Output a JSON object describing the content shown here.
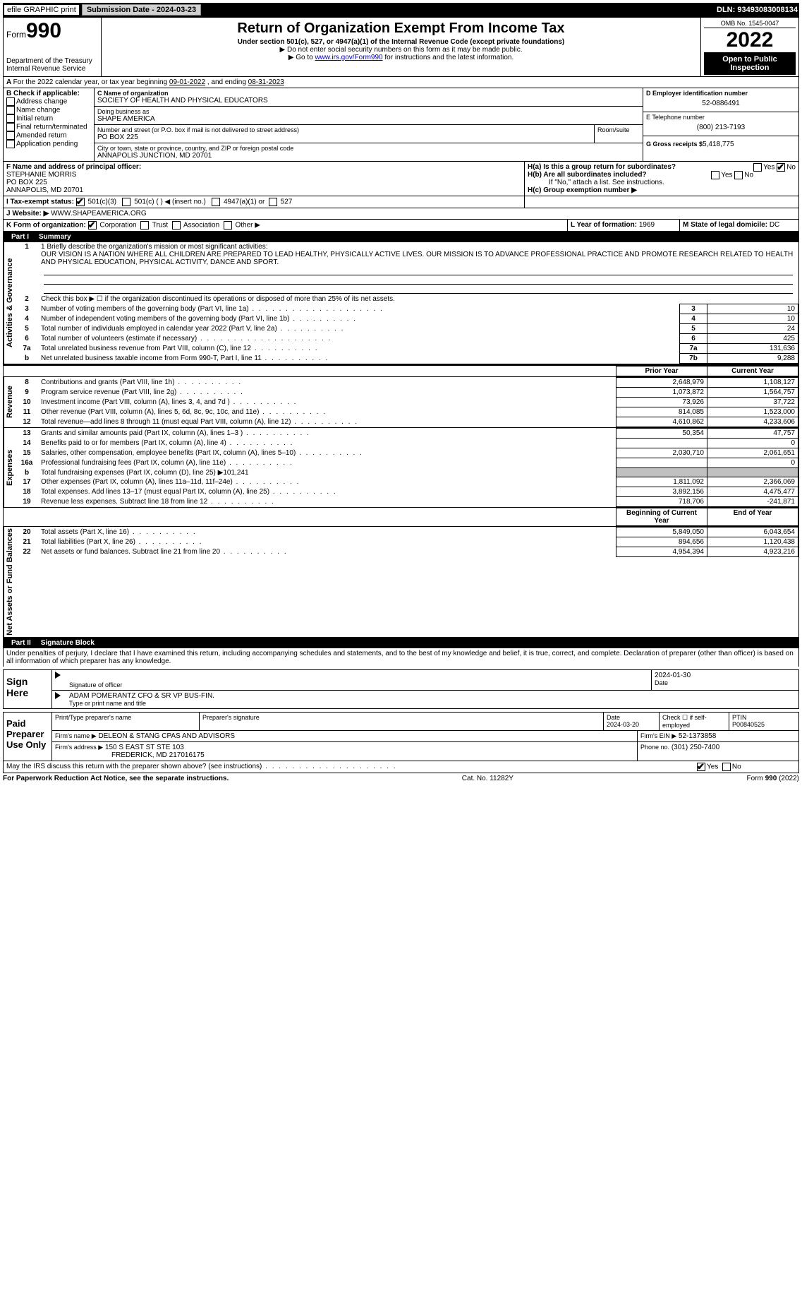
{
  "top": {
    "efile": "efile GRAPHIC print",
    "submission_label": "Submission Date - 2024-03-23",
    "dln": "DLN: 93493083008134"
  },
  "header": {
    "form_prefix": "Form",
    "form_number": "990",
    "title": "Return of Organization Exempt From Income Tax",
    "subtitle": "Under section 501(c), 527, or 4947(a)(1) of the Internal Revenue Code (except private foundations)",
    "note1": "▶ Do not enter social security numbers on this form as it may be made public.",
    "note2_pre": "▶ Go to ",
    "note2_link": "www.irs.gov/Form990",
    "note2_post": " for instructions and the latest information.",
    "dept": "Department of the Treasury\nInternal Revenue Service",
    "omb": "OMB No. 1545-0047",
    "year": "2022",
    "open_public": "Open to Public Inspection"
  },
  "period": {
    "label_a_pre": "For the 2022 calendar year, or tax year beginning ",
    "begin": "09-01-2022",
    "mid": " , and ending ",
    "end": "08-31-2023"
  },
  "box_b": {
    "header": "B Check if applicable:",
    "items": [
      "Address change",
      "Name change",
      "Initial return",
      "Final return/terminated",
      "Amended return",
      "Application pending"
    ]
  },
  "box_c": {
    "name_label": "C Name of organization",
    "name": "SOCIETY OF HEALTH AND PHYSICAL EDUCATORS",
    "dba_label": "Doing business as",
    "dba": "SHAPE AMERICA",
    "street_label": "Number and street (or P.O. box if mail is not delivered to street address)",
    "room_label": "Room/suite",
    "street": "PO BOX 225",
    "city_label": "City or town, state or province, country, and ZIP or foreign postal code",
    "city": "ANNAPOLIS JUNCTION, MD  20701"
  },
  "box_d": {
    "label": "D Employer identification number",
    "value": "52-0886491"
  },
  "box_e": {
    "label": "E Telephone number",
    "value": "(800) 213-7193"
  },
  "box_g": {
    "label": "G Gross receipts $",
    "value": "5,418,775"
  },
  "box_f": {
    "label": "F Name and address of principal officer:",
    "name": "STEPHANIE MORRIS",
    "street": "PO BOX 225",
    "city": "ANNAPOLIS, MD  20701"
  },
  "box_h": {
    "ha_label": "H(a)  Is this a group return for subordinates?",
    "yes": "Yes",
    "no": "No",
    "hb_label": "H(b)  Are all subordinates included?",
    "hb_note": "If \"No,\" attach a list. See instructions.",
    "hc_label": "H(c)  Group exemption number ▶"
  },
  "tax_status": {
    "label": "I    Tax-exempt status:",
    "opt1": "501(c)(3)",
    "opt2": "501(c) (  ) ◀ (insert no.)",
    "opt3": "4947(a)(1) or",
    "opt4": "527"
  },
  "website": {
    "label": "J    Website: ▶",
    "value": "WWW.SHAPEAMERICA.ORG"
  },
  "box_k": {
    "label": "K Form of organization:",
    "opts": [
      "Corporation",
      "Trust",
      "Association",
      "Other ▶"
    ]
  },
  "box_l": {
    "label": "L Year of formation:",
    "value": "1969"
  },
  "box_m": {
    "label": "M State of legal domicile:",
    "value": "DC"
  },
  "part1": {
    "label": "Part I",
    "title": "Summary"
  },
  "line1": {
    "label": "1  Briefly describe the organization's mission or most significant activities:",
    "text": "OUR VISION IS A NATION WHERE ALL CHILDREN ARE PREPARED TO LEAD HEALTHY, PHYSICALLY ACTIVE LIVES. OUR MISSION IS TO ADVANCE PROFESSIONAL PRACTICE AND PROMOTE RESEARCH RELATED TO HEALTH AND PHYSICAL EDUCATION, PHYSICAL ACTIVITY, DANCE AND SPORT."
  },
  "side_labels": {
    "gov": "Activities & Governance",
    "rev": "Revenue",
    "exp": "Expenses",
    "net": "Net Assets or Fund Balances"
  },
  "gov_lines": [
    {
      "n": "2",
      "t": "Check this box ▶ ☐ if the organization discontinued its operations or disposed of more than 25% of its net assets."
    },
    {
      "n": "3",
      "t": "Number of voting members of the governing body (Part VI, line 1a)",
      "box": "3",
      "v": "10"
    },
    {
      "n": "4",
      "t": "Number of independent voting members of the governing body (Part VI, line 1b)",
      "box": "4",
      "v": "10"
    },
    {
      "n": "5",
      "t": "Total number of individuals employed in calendar year 2022 (Part V, line 2a)",
      "box": "5",
      "v": "24"
    },
    {
      "n": "6",
      "t": "Total number of volunteers (estimate if necessary)",
      "box": "6",
      "v": "425"
    },
    {
      "n": "7a",
      "t": "Total unrelated business revenue from Part VIII, column (C), line 12",
      "box": "7a",
      "v": "131,636"
    },
    {
      "n": "b",
      "t": "Net unrelated business taxable income from Form 990-T, Part I, line 11",
      "box": "7b",
      "v": "9,288"
    }
  ],
  "col_headers": {
    "prior": "Prior Year",
    "current": "Current Year"
  },
  "rev_lines": [
    {
      "n": "8",
      "t": "Contributions and grants (Part VIII, line 1h)",
      "p": "2,648,979",
      "c": "1,108,127"
    },
    {
      "n": "9",
      "t": "Program service revenue (Part VIII, line 2g)",
      "p": "1,073,872",
      "c": "1,564,757"
    },
    {
      "n": "10",
      "t": "Investment income (Part VIII, column (A), lines 3, 4, and 7d )",
      "p": "73,926",
      "c": "37,722"
    },
    {
      "n": "11",
      "t": "Other revenue (Part VIII, column (A), lines 5, 6d, 8c, 9c, 10c, and 11e)",
      "p": "814,085",
      "c": "1,523,000"
    },
    {
      "n": "12",
      "t": "Total revenue—add lines 8 through 11 (must equal Part VIII, column (A), line 12)",
      "p": "4,610,862",
      "c": "4,233,606"
    }
  ],
  "exp_lines": [
    {
      "n": "13",
      "t": "Grants and similar amounts paid (Part IX, column (A), lines 1–3 )",
      "p": "50,354",
      "c": "47,757"
    },
    {
      "n": "14",
      "t": "Benefits paid to or for members (Part IX, column (A), line 4)",
      "p": "",
      "c": "0"
    },
    {
      "n": "15",
      "t": "Salaries, other compensation, employee benefits (Part IX, column (A), lines 5–10)",
      "p": "2,030,710",
      "c": "2,061,651"
    },
    {
      "n": "16a",
      "t": "Professional fundraising fees (Part IX, column (A), line 11e)",
      "p": "",
      "c": "0"
    },
    {
      "n": "b",
      "t": "Total fundraising expenses (Part IX, column (D), line 25) ▶101,241",
      "grey": true
    },
    {
      "n": "17",
      "t": "Other expenses (Part IX, column (A), lines 11a–11d, 11f–24e)",
      "p": "1,811,092",
      "c": "2,366,069"
    },
    {
      "n": "18",
      "t": "Total expenses. Add lines 13–17 (must equal Part IX, column (A), line 25)",
      "p": "3,892,156",
      "c": "4,475,477"
    },
    {
      "n": "19",
      "t": "Revenue less expenses. Subtract line 18 from line 12",
      "p": "718,706",
      "c": "-241,871"
    }
  ],
  "net_headers": {
    "begin": "Beginning of Current Year",
    "end": "End of Year"
  },
  "net_lines": [
    {
      "n": "20",
      "t": "Total assets (Part X, line 16)",
      "p": "5,849,050",
      "c": "6,043,654"
    },
    {
      "n": "21",
      "t": "Total liabilities (Part X, line 26)",
      "p": "894,656",
      "c": "1,120,438"
    },
    {
      "n": "22",
      "t": "Net assets or fund balances. Subtract line 21 from line 20",
      "p": "4,954,394",
      "c": "4,923,216"
    }
  ],
  "part2": {
    "label": "Part II",
    "title": "Signature Block"
  },
  "sig_penalty": "Under penalties of perjury, I declare that I have examined this return, including accompanying schedules and statements, and to the best of my knowledge and belief, it is true, correct, and complete. Declaration of preparer (other than officer) is based on all information of which preparer has any knowledge.",
  "sign_here": {
    "label": "Sign Here",
    "sig_label": "Signature of officer",
    "date": "2024-01-30",
    "date_label": "Date",
    "name": "ADAM POMERANTZ  CFO & SR VP BUS-FIN.",
    "name_label": "Type or print name and title"
  },
  "preparer": {
    "label": "Paid Preparer Use Only",
    "print_label": "Print/Type preparer's name",
    "sig_label": "Preparer's signature",
    "date_label": "Date",
    "date": "2024-03-20",
    "check_label": "Check ☐ if self-employed",
    "ptin_label": "PTIN",
    "ptin": "P00840525",
    "firm_name_label": "Firm's name    ▶",
    "firm_name": "DELEON & STANG CPAS AND ADVISORS",
    "firm_ein_label": "Firm's EIN ▶",
    "firm_ein": "52-1373858",
    "firm_addr_label": "Firm's address ▶",
    "firm_addr1": "150 S EAST ST STE 103",
    "firm_addr2": "FREDERICK, MD  217016175",
    "phone_label": "Phone no.",
    "phone": "(301) 250-7400"
  },
  "discuss": {
    "text": "May the IRS discuss this return with the preparer shown above? (see instructions)",
    "yes": "Yes",
    "no": "No"
  },
  "footer": {
    "left": "For Paperwork Reduction Act Notice, see the separate instructions.",
    "mid": "Cat. No. 11282Y",
    "right_pre": "Form ",
    "right_bold": "990",
    "right_post": " (2022)"
  }
}
